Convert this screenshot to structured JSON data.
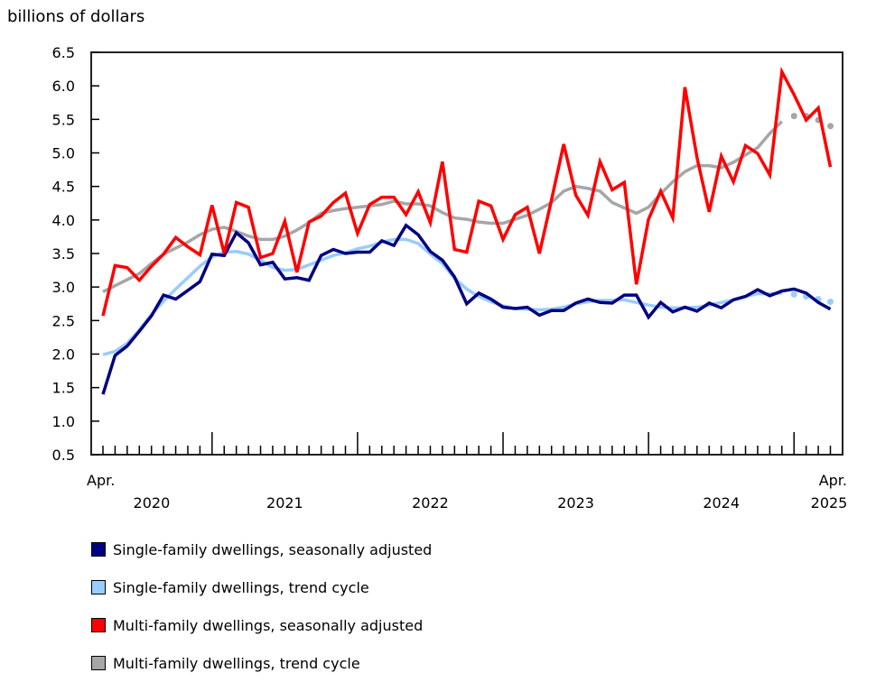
{
  "chart_data": {
    "type": "line",
    "ylabel": "billions of dollars",
    "ylim": [
      0.5,
      6.5
    ],
    "yticks": [
      "0.5",
      "1.0",
      "1.5",
      "2.0",
      "2.5",
      "3.0",
      "3.5",
      "4.0",
      "4.5",
      "5.0",
      "5.5",
      "6.0",
      "6.5"
    ],
    "grid": false,
    "legend_placement": "bottom",
    "x_start_label": "Apr.",
    "x_end_label": "Apr.",
    "year_labels": [
      "2020",
      "2021",
      "2022",
      "2023",
      "2024",
      "2025"
    ],
    "x": [
      "2020-04",
      "2020-05",
      "2020-06",
      "2020-07",
      "2020-08",
      "2020-09",
      "2020-10",
      "2020-11",
      "2020-12",
      "2021-01",
      "2021-02",
      "2021-03",
      "2021-04",
      "2021-05",
      "2021-06",
      "2021-07",
      "2021-08",
      "2021-09",
      "2021-10",
      "2021-11",
      "2021-12",
      "2022-01",
      "2022-02",
      "2022-03",
      "2022-04",
      "2022-05",
      "2022-06",
      "2022-07",
      "2022-08",
      "2022-09",
      "2022-10",
      "2022-11",
      "2022-12",
      "2023-01",
      "2023-02",
      "2023-03",
      "2023-04",
      "2023-05",
      "2023-06",
      "2023-07",
      "2023-08",
      "2023-09",
      "2023-10",
      "2023-11",
      "2023-12",
      "2024-01",
      "2024-02",
      "2024-03",
      "2024-04",
      "2024-05",
      "2024-06",
      "2024-07",
      "2024-08",
      "2024-09",
      "2024-10",
      "2024-11",
      "2024-12",
      "2025-01",
      "2025-02",
      "2025-03",
      "2025-04"
    ],
    "series": [
      {
        "name": "Single-family dwellings, seasonally adjusted",
        "color": "#000080",
        "style": "solid",
        "values": [
          1.4,
          1.98,
          2.12,
          2.34,
          2.57,
          2.88,
          2.82,
          2.95,
          3.08,
          3.49,
          3.47,
          3.81,
          3.66,
          3.33,
          3.37,
          3.12,
          3.14,
          3.1,
          3.47,
          3.56,
          3.5,
          3.52,
          3.52,
          3.69,
          3.62,
          3.92,
          3.78,
          3.53,
          3.4,
          3.15,
          2.75,
          2.91,
          2.82,
          2.7,
          2.68,
          2.7,
          2.58,
          2.65,
          2.65,
          2.76,
          2.82,
          2.77,
          2.76,
          2.88,
          2.88,
          2.55,
          2.77,
          2.63,
          2.7,
          2.64,
          2.76,
          2.69,
          2.81,
          2.86,
          2.96,
          2.87,
          2.94,
          2.97,
          2.91,
          2.77,
          2.67
        ]
      },
      {
        "name": "Single-family dwellings, trend cycle",
        "color": "#99CCFF",
        "style": "solid-then-dotted",
        "dotted_from": "2025-01",
        "values": [
          1.99,
          2.04,
          2.16,
          2.36,
          2.59,
          2.79,
          2.97,
          3.14,
          3.31,
          3.45,
          3.52,
          3.53,
          3.49,
          3.4,
          3.29,
          3.25,
          3.26,
          3.33,
          3.4,
          3.47,
          3.51,
          3.57,
          3.61,
          3.67,
          3.71,
          3.71,
          3.65,
          3.49,
          3.35,
          3.13,
          2.97,
          2.86,
          2.78,
          2.72,
          2.68,
          2.67,
          2.66,
          2.67,
          2.7,
          2.75,
          2.78,
          2.8,
          2.8,
          2.81,
          2.77,
          2.73,
          2.7,
          2.69,
          2.69,
          2.7,
          2.73,
          2.77,
          2.81,
          2.86,
          2.9,
          2.9,
          2.91,
          2.89,
          2.86,
          2.82,
          2.78
        ]
      },
      {
        "name": "Multi-family dwellings, seasonally adjusted",
        "color": "#FF0000",
        "style": "solid",
        "values": [
          2.57,
          3.32,
          3.29,
          3.1,
          3.31,
          3.49,
          3.74,
          3.6,
          3.48,
          4.22,
          3.5,
          4.26,
          4.19,
          3.44,
          3.5,
          3.98,
          3.22,
          3.97,
          4.06,
          4.26,
          4.4,
          3.8,
          4.23,
          4.34,
          4.34,
          4.08,
          4.42,
          3.96,
          4.87,
          3.56,
          3.52,
          4.28,
          4.21,
          3.71,
          4.08,
          4.19,
          3.5,
          4.3,
          5.13,
          4.37,
          4.07,
          4.87,
          4.45,
          4.56,
          3.04,
          4.01,
          4.43,
          4.03,
          5.98,
          4.93,
          4.12,
          4.95,
          4.57,
          5.11,
          4.99,
          4.67,
          6.21,
          5.87,
          5.49,
          5.67,
          4.79
        ]
      },
      {
        "name": "Multi-family dwellings, trend cycle",
        "color": "#A6A6A6",
        "style": "solid-then-dotted",
        "dotted_from": "2025-01",
        "values": [
          2.93,
          3.02,
          3.11,
          3.2,
          3.35,
          3.49,
          3.58,
          3.67,
          3.78,
          3.86,
          3.89,
          3.83,
          3.76,
          3.71,
          3.71,
          3.76,
          3.85,
          3.96,
          4.1,
          4.14,
          4.17,
          4.19,
          4.21,
          4.23,
          4.28,
          4.24,
          4.24,
          4.21,
          4.11,
          4.03,
          4.01,
          3.97,
          3.95,
          3.95,
          4.01,
          4.07,
          4.16,
          4.26,
          4.43,
          4.5,
          4.47,
          4.43,
          4.26,
          4.18,
          4.1,
          4.19,
          4.39,
          4.57,
          4.72,
          4.81,
          4.81,
          4.78,
          4.86,
          4.97,
          5.08,
          5.29,
          5.47,
          5.55,
          5.55,
          5.49,
          5.4
        ]
      }
    ]
  }
}
